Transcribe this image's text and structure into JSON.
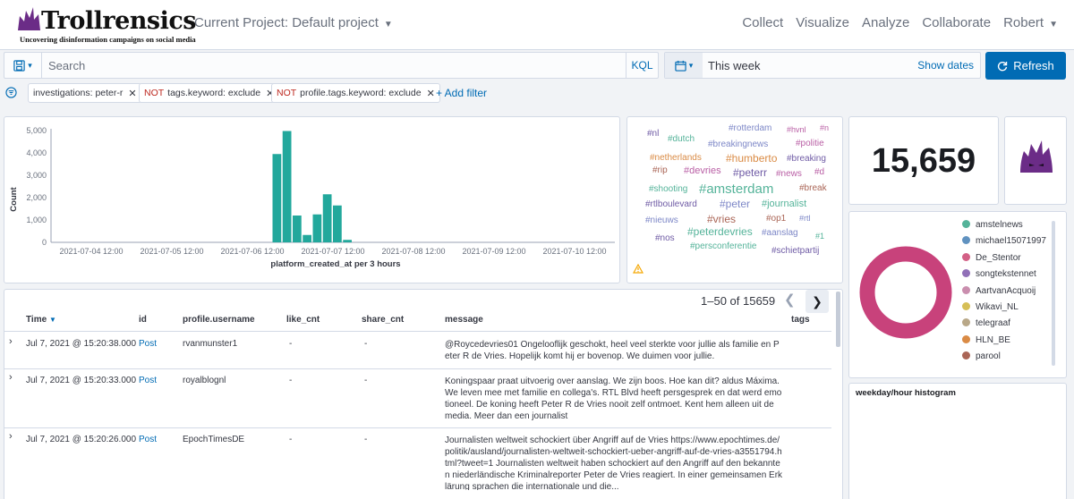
{
  "brand": {
    "name": "Trollrensics",
    "tagline": "Uncovering disinformation campaigns on social media"
  },
  "header": {
    "project_label": "Current Project: Default project",
    "nav": [
      "Collect",
      "Visualize",
      "Analyze",
      "Collaborate"
    ],
    "user": "Robert"
  },
  "query": {
    "placeholder": "Search",
    "value": "",
    "language": "KQL"
  },
  "time": {
    "range": "This week",
    "show_dates": "Show dates",
    "refresh": "Refresh"
  },
  "filters": [
    {
      "negate": "",
      "label": "investigations: peter-r"
    },
    {
      "negate": "NOT",
      "label": "tags.keyword: exclude"
    },
    {
      "negate": "NOT",
      "label": "profile.tags.keyword: exclude"
    }
  ],
  "add_filter": "+ Add filter",
  "chart_data": {
    "type": "bar",
    "ylabel": "Count",
    "xlabel": "platform_created_at per 3 hours",
    "ylim": [
      0,
      5000
    ],
    "yticks": [
      "0",
      "1,000",
      "2,000",
      "3,000",
      "4,000",
      "5,000"
    ],
    "xticks": [
      "2021-07-04 12:00",
      "2021-07-05 12:00",
      "2021-07-06 12:00",
      "2021-07-07 12:00",
      "2021-07-08 12:00",
      "2021-07-09 12:00",
      "2021-07-10 12:00"
    ],
    "x": [
      "2021-07-06 18:00",
      "2021-07-06 21:00",
      "2021-07-07 00:00",
      "2021-07-07 03:00",
      "2021-07-07 06:00",
      "2021-07-07 09:00",
      "2021-07-07 12:00",
      "2021-07-07 15:00"
    ],
    "values": [
      3950,
      4980,
      1200,
      330,
      1250,
      2150,
      1650,
      110
    ],
    "color": "#22a89c"
  },
  "wordcloud": [
    {
      "text": "#nl",
      "color": "#6f5ba5",
      "size": 10
    },
    {
      "text": "#rotterdam",
      "color": "#7d87c7",
      "size": 10
    },
    {
      "text": "#hvnl",
      "color": "#b95fa5",
      "size": 9
    },
    {
      "text": "#n",
      "color": "#b95fa5",
      "size": 9
    },
    {
      "text": "#dutch",
      "color": "#54b399",
      "size": 10
    },
    {
      "text": "#breakingnews",
      "color": "#7d87c7",
      "size": 10
    },
    {
      "text": "#politie",
      "color": "#b95fa5",
      "size": 10
    },
    {
      "text": "#netherlands",
      "color": "#da8b45",
      "size": 10
    },
    {
      "text": "#humberto",
      "color": "#da8b45",
      "size": 12
    },
    {
      "text": "#breaking",
      "color": "#6f5ba5",
      "size": 10
    },
    {
      "text": "#rip",
      "color": "#aa6556",
      "size": 10
    },
    {
      "text": "#devries",
      "color": "#b95fa5",
      "size": 11
    },
    {
      "text": "#peterr",
      "color": "#6f5ba5",
      "size": 12
    },
    {
      "text": "#news",
      "color": "#b95fa5",
      "size": 10
    },
    {
      "text": "#d",
      "color": "#b95fa5",
      "size": 10
    },
    {
      "text": "#shooting",
      "color": "#54b399",
      "size": 10
    },
    {
      "text": "#amsterdam",
      "color": "#54b399",
      "size": 15
    },
    {
      "text": "#break",
      "color": "#aa6556",
      "size": 10
    },
    {
      "text": "#rtlboulevard",
      "color": "#6f5ba5",
      "size": 10
    },
    {
      "text": "#peter",
      "color": "#7d87c7",
      "size": 12
    },
    {
      "text": "#journalist",
      "color": "#54b399",
      "size": 11
    },
    {
      "text": "#nieuws",
      "color": "#7d87c7",
      "size": 10
    },
    {
      "text": "#vries",
      "color": "#aa6556",
      "size": 12
    },
    {
      "text": "#op1",
      "color": "#aa6556",
      "size": 10
    },
    {
      "text": "#rtl",
      "color": "#7d87c7",
      "size": 9
    },
    {
      "text": "#nos",
      "color": "#6f5ba5",
      "size": 10
    },
    {
      "text": "#peterdevries",
      "color": "#54b399",
      "size": 12
    },
    {
      "text": "#aanslag",
      "color": "#7d87c7",
      "size": 10
    },
    {
      "text": "#1",
      "color": "#54b399",
      "size": 9
    },
    {
      "text": "#persconferentie",
      "color": "#54b399",
      "size": 10
    },
    {
      "text": "#schietpartij",
      "color": "#6f5ba5",
      "size": 10
    }
  ],
  "metric": {
    "value": "15,659"
  },
  "donut": {
    "color": "#c8427b"
  },
  "legend": [
    {
      "label": "amstelnews",
      "color": "#54b399"
    },
    {
      "label": "michael15071997",
      "color": "#6092c0"
    },
    {
      "label": "De_Stentor",
      "color": "#d36086"
    },
    {
      "label": "songtekstennet",
      "color": "#9170b8"
    },
    {
      "label": "AartvanAcquoij",
      "color": "#ca8eae"
    },
    {
      "label": "Wikavi_NL",
      "color": "#d6bf57"
    },
    {
      "label": "telegraaf",
      "color": "#b9a888"
    },
    {
      "label": "HLN_BE",
      "color": "#da8b45"
    },
    {
      "label": "parool",
      "color": "#aa6556"
    }
  ],
  "histogram_title": "weekday/hour histogram",
  "pagination": {
    "text": "1–50 of 15659"
  },
  "table": {
    "columns": [
      "Time",
      "id",
      "profile.username",
      "like_cnt",
      "share_cnt",
      "message",
      "tags"
    ],
    "rows": [
      {
        "time": "Jul 7, 2021 @ 15:20:38.000",
        "id": "Post",
        "user": "rvanmunster1",
        "like": "-",
        "share": "-",
        "message": "@Roycedevries01 Ongelooflijk geschokt, heel veel sterkte voor jullie als familie en Peter R de Vries. Hopelijk komt hij er bovenop. We duimen voor jullie."
      },
      {
        "time": "Jul 7, 2021 @ 15:20:33.000",
        "id": "Post",
        "user": "royalblognl",
        "like": "-",
        "share": "-",
        "message": "Koningspaar praat uitvoerig over aanslag. We zijn boos. Hoe kan dit? aldus Máxima. We leven mee met familie en collega's. RTL Blvd heeft persgesprek en dat werd emotioneel. De koning heeft Peter R de Vries nooit zelf ontmoet. Kent hem alleen uit de media. Meer dan een journalist"
      },
      {
        "time": "Jul 7, 2021 @ 15:20:26.000",
        "id": "Post",
        "user": "EpochTimesDE",
        "like": "-",
        "share": "-",
        "message": "Journalisten weltweit schockiert über Angriff auf de Vries https://www.epochtimes.de/politik/ausland/journalisten-weltweit-schockiert-ueber-angriff-auf-de-vries-a3551794.html?tweet=1 Journalisten weltweit haben schockiert auf den Angriff auf den bekannten niederländische Kriminalreporter Peter de Vries reagiert. In einer gemeinsamen Erklärung sprachen die internationale und die..."
      }
    ]
  }
}
